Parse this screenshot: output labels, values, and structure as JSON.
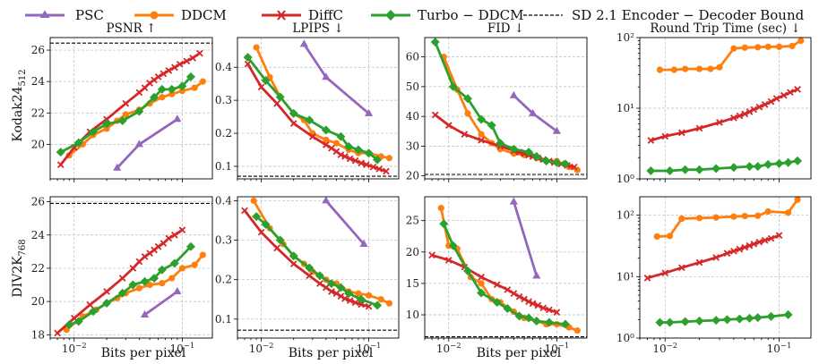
{
  "legend": [
    {
      "name": "PSC",
      "color": "#9467bd",
      "marker": "triangle"
    },
    {
      "name": "DDCM",
      "color": "#ff7f0e",
      "marker": "circle"
    },
    {
      "name": "DiffC",
      "color": "#d62728",
      "marker": "x"
    },
    {
      "name": "Turbo − DDCM",
      "color": "#2ca02c",
      "marker": "diamond"
    },
    {
      "name": "SD 2.1 Encoder − Decoder Bound",
      "color": "#000000",
      "marker": "dashed"
    }
  ],
  "xlabel": "Bits per pixel",
  "row_labels": [
    {
      "main": "Kodak24",
      "sub": "512"
    },
    {
      "main": "DIV2K",
      "sub": "768"
    }
  ],
  "col_titles": [
    "PSNR ↑",
    "LPIPS ↓",
    "FID ↓",
    "Round Trip Time (sec) ↓"
  ],
  "chart_data": [
    {
      "type": "line",
      "row": 0,
      "col": 0,
      "title": "PSNR ↑",
      "xscale": "log",
      "xlim": [
        0.006,
        0.19
      ],
      "ylim": [
        17.8,
        26.8
      ],
      "yticks": [
        20,
        22,
        24,
        26
      ],
      "ytick_labels": [
        "20",
        "22",
        "24",
        "26"
      ],
      "bound": 26.45,
      "series": [
        {
          "name": "PSC",
          "x": [
            0.025,
            0.04,
            0.09
          ],
          "y": [
            18.5,
            20.0,
            21.6
          ]
        },
        {
          "name": "DDCM",
          "x": [
            0.009,
            0.012,
            0.015,
            0.02,
            0.025,
            0.03,
            0.04,
            0.05,
            0.065,
            0.08,
            0.1,
            0.13,
            0.155
          ],
          "y": [
            19.3,
            20.0,
            20.6,
            21.0,
            21.5,
            21.9,
            22.2,
            22.6,
            23.0,
            23.2,
            23.4,
            23.6,
            24.0
          ]
        },
        {
          "name": "DiffC",
          "x": [
            0.0075,
            0.01,
            0.014,
            0.02,
            0.03,
            0.04,
            0.045,
            0.05,
            0.055,
            0.06,
            0.067,
            0.075,
            0.085,
            0.095,
            0.11,
            0.125,
            0.145
          ],
          "y": [
            18.7,
            19.8,
            20.8,
            21.6,
            22.6,
            23.3,
            23.6,
            23.9,
            24.1,
            24.3,
            24.5,
            24.7,
            24.9,
            25.1,
            25.3,
            25.5,
            25.8
          ]
        },
        {
          "name": "Turbo − DDCM",
          "x": [
            0.0075,
            0.011,
            0.015,
            0.02,
            0.028,
            0.04,
            0.055,
            0.065,
            0.08,
            0.1,
            0.12
          ],
          "y": [
            19.5,
            20.1,
            20.8,
            21.3,
            21.5,
            22.1,
            23.0,
            23.5,
            23.5,
            23.7,
            24.3
          ]
        }
      ]
    },
    {
      "type": "line",
      "row": 0,
      "col": 1,
      "title": "LPIPS ↓",
      "xscale": "log",
      "xlim": [
        0.006,
        0.19
      ],
      "ylim": [
        0.062,
        0.49
      ],
      "yticks": [
        0.1,
        0.2,
        0.3,
        0.4
      ],
      "ytick_labels": [
        "0.1",
        "0.2",
        "0.3",
        "0.4"
      ],
      "bound": 0.07,
      "series": [
        {
          "name": "PSC",
          "x": [
            0.025,
            0.04,
            0.1
          ],
          "y": [
            0.47,
            0.37,
            0.26
          ]
        },
        {
          "name": "DDCM",
          "x": [
            0.009,
            0.012,
            0.015,
            0.02,
            0.025,
            0.03,
            0.04,
            0.05,
            0.065,
            0.08,
            0.1,
            0.13,
            0.155
          ],
          "y": [
            0.46,
            0.37,
            0.31,
            0.26,
            0.24,
            0.2,
            0.18,
            0.17,
            0.15,
            0.14,
            0.14,
            0.13,
            0.125
          ]
        },
        {
          "name": "DiffC",
          "x": [
            0.0075,
            0.01,
            0.014,
            0.02,
            0.03,
            0.04,
            0.045,
            0.05,
            0.055,
            0.06,
            0.067,
            0.075,
            0.085,
            0.095,
            0.11,
            0.125,
            0.145
          ],
          "y": [
            0.41,
            0.34,
            0.29,
            0.23,
            0.19,
            0.165,
            0.155,
            0.145,
            0.135,
            0.13,
            0.123,
            0.117,
            0.11,
            0.105,
            0.098,
            0.092,
            0.085
          ]
        },
        {
          "name": "Turbo − DDCM",
          "x": [
            0.0075,
            0.011,
            0.015,
            0.02,
            0.028,
            0.04,
            0.055,
            0.065,
            0.08,
            0.1,
            0.12
          ],
          "y": [
            0.43,
            0.36,
            0.31,
            0.26,
            0.24,
            0.21,
            0.19,
            0.16,
            0.15,
            0.14,
            0.12
          ]
        }
      ]
    },
    {
      "type": "line",
      "row": 0,
      "col": 2,
      "title": "FID ↓",
      "xscale": "log",
      "xlim": [
        0.006,
        0.19
      ],
      "ylim": [
        19.0,
        66.5
      ],
      "yticks": [
        20,
        30,
        40,
        50,
        60
      ],
      "ytick_labels": [
        "20",
        "30",
        "40",
        "50",
        "60"
      ],
      "bound": 20.5,
      "series": [
        {
          "name": "PSC",
          "x": [
            0.04,
            0.06,
            0.1
          ],
          "y": [
            47.0,
            41.0,
            35.0
          ]
        },
        {
          "name": "DDCM",
          "x": [
            0.009,
            0.012,
            0.015,
            0.02,
            0.025,
            0.03,
            0.04,
            0.05,
            0.065,
            0.08,
            0.1,
            0.13,
            0.155
          ],
          "y": [
            60.0,
            49.0,
            41.0,
            34.0,
            31.0,
            29.0,
            27.5,
            27.0,
            26.0,
            25.0,
            25.0,
            23.0,
            22.0
          ]
        },
        {
          "name": "DiffC",
          "x": [
            0.0075,
            0.01,
            0.014,
            0.02,
            0.03,
            0.04,
            0.045,
            0.05,
            0.055,
            0.06,
            0.067,
            0.075,
            0.085,
            0.095,
            0.11,
            0.125,
            0.145
          ],
          "y": [
            40.5,
            37.0,
            34.0,
            32.0,
            30.0,
            28.5,
            28.0,
            27.5,
            27.0,
            26.5,
            26.0,
            25.5,
            25.0,
            24.5,
            24.0,
            23.5,
            23.0
          ]
        },
        {
          "name": "Turbo − DDCM",
          "x": [
            0.0075,
            0.011,
            0.015,
            0.02,
            0.025,
            0.03,
            0.04,
            0.055,
            0.065,
            0.08,
            0.1,
            0.12
          ],
          "y": [
            65.0,
            50.0,
            46.0,
            39.0,
            37.0,
            31.0,
            29.0,
            28.0,
            26.5,
            25.0,
            24.5,
            24.0
          ]
        }
      ]
    },
    {
      "type": "line",
      "row": 0,
      "col": 3,
      "title": "Round Trip Time (sec) ↓",
      "xscale": "log",
      "yscale": "log",
      "xlim": [
        0.006,
        0.19
      ],
      "ylim": [
        1.0,
        100.0
      ],
      "yticks": [
        1,
        10,
        100
      ],
      "ytick_labels": [
        "10⁰",
        "10¹",
        "10²"
      ],
      "bound": null,
      "series": [
        {
          "name": "DDCM",
          "x": [
            0.009,
            0.012,
            0.015,
            0.02,
            0.025,
            0.03,
            0.04,
            0.05,
            0.065,
            0.08,
            0.1,
            0.13,
            0.155
          ],
          "y": [
            35,
            35,
            36,
            36,
            36,
            38,
            70,
            72,
            73,
            74,
            74,
            76,
            90
          ]
        },
        {
          "name": "DiffC",
          "x": [
            0.0075,
            0.01,
            0.014,
            0.02,
            0.03,
            0.04,
            0.045,
            0.05,
            0.055,
            0.06,
            0.067,
            0.075,
            0.085,
            0.095,
            0.11,
            0.125,
            0.145
          ],
          "y": [
            3.5,
            4.0,
            4.5,
            5.2,
            6.3,
            7.3,
            7.8,
            8.3,
            8.9,
            9.6,
            10.4,
            11.3,
            12.4,
            13.7,
            15.2,
            16.8,
            18.5
          ]
        },
        {
          "name": "Turbo − DDCM",
          "x": [
            0.0075,
            0.011,
            0.015,
            0.02,
            0.028,
            0.04,
            0.055,
            0.065,
            0.08,
            0.1,
            0.12,
            0.145
          ],
          "y": [
            1.3,
            1.3,
            1.35,
            1.35,
            1.4,
            1.45,
            1.5,
            1.5,
            1.6,
            1.65,
            1.7,
            1.8
          ]
        }
      ]
    },
    {
      "type": "line",
      "row": 1,
      "col": 0,
      "title": "",
      "xscale": "log",
      "xlim": [
        0.006,
        0.19
      ],
      "ylim": [
        17.8,
        26.3
      ],
      "yticks": [
        18,
        20,
        22,
        24,
        26
      ],
      "ytick_labels": [
        "18",
        "20",
        "22",
        "24",
        "26"
      ],
      "bound": 25.9,
      "series": [
        {
          "name": "PSC",
          "x": [
            0.045,
            0.09
          ],
          "y": [
            19.2,
            20.6
          ]
        },
        {
          "name": "DDCM",
          "x": [
            0.0085,
            0.012,
            0.016,
            0.02,
            0.025,
            0.03,
            0.04,
            0.05,
            0.065,
            0.08,
            0.1,
            0.13,
            0.155
          ],
          "y": [
            18.3,
            19.1,
            19.5,
            19.9,
            20.2,
            20.5,
            20.8,
            21.0,
            21.1,
            21.4,
            22.0,
            22.2,
            22.8
          ]
        },
        {
          "name": "DiffC",
          "x": [
            0.007,
            0.01,
            0.014,
            0.02,
            0.028,
            0.035,
            0.04,
            0.045,
            0.05,
            0.055,
            0.06,
            0.067,
            0.075,
            0.085,
            0.1
          ],
          "y": [
            18.1,
            19.0,
            19.8,
            20.6,
            21.4,
            22.0,
            22.4,
            22.7,
            22.9,
            23.1,
            23.3,
            23.5,
            23.8,
            24.0,
            24.3
          ]
        },
        {
          "name": "Turbo − DDCM",
          "x": [
            0.009,
            0.011,
            0.015,
            0.02,
            0.028,
            0.035,
            0.045,
            0.055,
            0.065,
            0.085,
            0.12
          ],
          "y": [
            18.6,
            18.8,
            19.4,
            19.9,
            20.5,
            21.0,
            21.2,
            21.4,
            21.9,
            22.3,
            23.3
          ]
        }
      ]
    },
    {
      "type": "line",
      "row": 1,
      "col": 1,
      "title": "",
      "xscale": "log",
      "xlim": [
        0.006,
        0.19
      ],
      "ylim": [
        0.052,
        0.41
      ],
      "yticks": [
        0.1,
        0.2,
        0.3,
        0.4
      ],
      "ytick_labels": [
        "0.1",
        "0.2",
        "0.3",
        "0.4"
      ],
      "bound": 0.072,
      "series": [
        {
          "name": "PSC",
          "x": [
            0.04,
            0.09
          ],
          "y": [
            0.4,
            0.29
          ]
        },
        {
          "name": "DDCM",
          "x": [
            0.0085,
            0.012,
            0.016,
            0.02,
            0.025,
            0.03,
            0.04,
            0.05,
            0.065,
            0.08,
            0.1,
            0.13,
            0.155
          ],
          "y": [
            0.4,
            0.33,
            0.29,
            0.26,
            0.24,
            0.22,
            0.2,
            0.19,
            0.17,
            0.165,
            0.16,
            0.15,
            0.14
          ]
        },
        {
          "name": "DiffC",
          "x": [
            0.007,
            0.01,
            0.014,
            0.02,
            0.028,
            0.035,
            0.04,
            0.045,
            0.05,
            0.055,
            0.06,
            0.067,
            0.075,
            0.085,
            0.1
          ],
          "y": [
            0.375,
            0.32,
            0.28,
            0.24,
            0.21,
            0.19,
            0.18,
            0.17,
            0.165,
            0.158,
            0.152,
            0.147,
            0.142,
            0.137,
            0.132
          ]
        },
        {
          "name": "Turbo − DDCM",
          "x": [
            0.009,
            0.011,
            0.015,
            0.02,
            0.028,
            0.035,
            0.045,
            0.055,
            0.065,
            0.085,
            0.12
          ],
          "y": [
            0.36,
            0.34,
            0.3,
            0.26,
            0.23,
            0.21,
            0.19,
            0.18,
            0.165,
            0.15,
            0.135
          ]
        }
      ]
    },
    {
      "type": "line",
      "row": 1,
      "col": 2,
      "title": "",
      "xscale": "log",
      "xlim": [
        0.006,
        0.19
      ],
      "ylim": [
        6.3,
        28.8
      ],
      "yticks": [
        10,
        15,
        20,
        25
      ],
      "ytick_labels": [
        "10",
        "15",
        "20",
        "25"
      ],
      "bound": 6.5,
      "series": [
        {
          "name": "PSC",
          "x": [
            0.04,
            0.065
          ],
          "y": [
            28.0,
            16.2
          ]
        },
        {
          "name": "DDCM",
          "x": [
            0.0085,
            0.01,
            0.012,
            0.016,
            0.02,
            0.025,
            0.03,
            0.04,
            0.05,
            0.065,
            0.08,
            0.1,
            0.13,
            0.155
          ],
          "y": [
            27.0,
            21.0,
            20.5,
            16.0,
            15.0,
            12.5,
            12.0,
            10.5,
            9.5,
            9.0,
            8.5,
            8.5,
            8.0,
            7.5
          ]
        },
        {
          "name": "DiffC",
          "x": [
            0.007,
            0.01,
            0.014,
            0.02,
            0.028,
            0.035,
            0.04,
            0.045,
            0.05,
            0.055,
            0.06,
            0.067,
            0.075,
            0.085,
            0.1
          ],
          "y": [
            19.5,
            18.7,
            17.6,
            16.0,
            14.8,
            14.0,
            13.4,
            12.9,
            12.5,
            12.1,
            11.8,
            11.5,
            11.1,
            10.8,
            10.4
          ]
        },
        {
          "name": "Turbo − DDCM",
          "x": [
            0.009,
            0.011,
            0.015,
            0.02,
            0.028,
            0.035,
            0.045,
            0.055,
            0.065,
            0.085,
            0.12
          ],
          "y": [
            24.5,
            21.0,
            17.0,
            13.5,
            12.0,
            11.0,
            9.8,
            9.5,
            9.0,
            8.8,
            8.5
          ]
        }
      ]
    },
    {
      "type": "line",
      "row": 1,
      "col": 3,
      "title": "",
      "xscale": "log",
      "yscale": "log",
      "xlim": [
        0.006,
        0.19
      ],
      "ylim": [
        1.0,
        200.0
      ],
      "yticks": [
        1,
        10,
        100
      ],
      "ytick_labels": [
        "10⁰",
        "10¹",
        "10²"
      ],
      "bound": null,
      "series": [
        {
          "name": "DDCM",
          "x": [
            0.0085,
            0.011,
            0.014,
            0.02,
            0.028,
            0.04,
            0.05,
            0.065,
            0.08,
            0.12,
            0.145
          ],
          "y": [
            45,
            46,
            88,
            90,
            92,
            95,
            97,
            98,
            115,
            110,
            180
          ]
        },
        {
          "name": "DiffC",
          "x": [
            0.007,
            0.01,
            0.014,
            0.02,
            0.028,
            0.035,
            0.04,
            0.045,
            0.05,
            0.055,
            0.06,
            0.067,
            0.075,
            0.085,
            0.1
          ],
          "y": [
            9.5,
            11.5,
            14.0,
            17.0,
            20.5,
            24.0,
            26.0,
            28.0,
            30.0,
            32.0,
            34.0,
            36.5,
            39.0,
            42.0,
            47.0
          ]
        },
        {
          "name": "Turbo − DDCM",
          "x": [
            0.009,
            0.011,
            0.015,
            0.02,
            0.028,
            0.035,
            0.045,
            0.055,
            0.065,
            0.085,
            0.12
          ],
          "y": [
            1.8,
            1.8,
            1.85,
            1.9,
            1.95,
            2.0,
            2.05,
            2.1,
            2.15,
            2.25,
            2.4
          ]
        }
      ]
    }
  ]
}
